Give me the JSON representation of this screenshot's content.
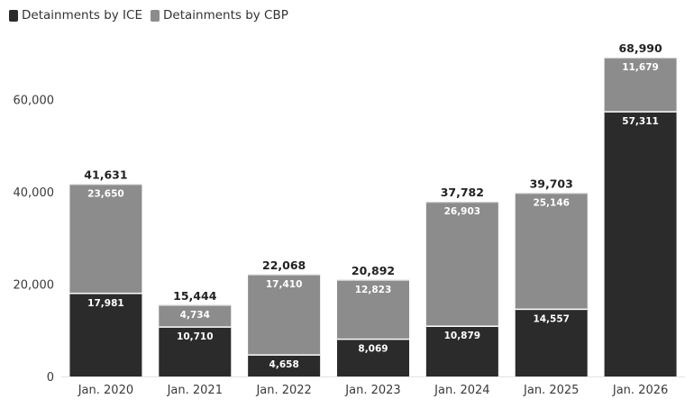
{
  "chart_data": {
    "type": "bar",
    "stacked": true,
    "categories": [
      "Jan. 2020",
      "Jan. 2021",
      "Jan. 2022",
      "Jan. 2023",
      "Jan. 2024",
      "Jan. 2025",
      "Jan. 2026"
    ],
    "series": [
      {
        "name": "Detainments by ICE",
        "color": "#2b2b2b",
        "values": [
          17981,
          10710,
          4658,
          8069,
          10879,
          14557,
          57311
        ],
        "labels": [
          "17,981",
          "10,710",
          "4,658",
          "8,069",
          "10,879",
          "14,557",
          "57,311"
        ]
      },
      {
        "name": "Detainments by CBP",
        "color": "#8c8c8c",
        "values": [
          23650,
          4734,
          17410,
          12823,
          26903,
          25146,
          11679
        ],
        "labels": [
          "23,650",
          "4,734",
          "17,410",
          "12,823",
          "26,903",
          "25,146",
          "11,679"
        ]
      }
    ],
    "totals": [
      41631,
      15444,
      22068,
      20892,
      37782,
      39703,
      68990
    ],
    "total_labels": [
      "41,631",
      "15,444",
      "22,068",
      "20,892",
      "37,782",
      "39,703",
      "68,990"
    ],
    "y_ticks": [
      0,
      20000,
      40000,
      60000
    ],
    "y_tick_labels": [
      "0",
      "20,000",
      "40,000",
      "60,000"
    ],
    "ylim": [
      0,
      70000
    ],
    "title": "",
    "xlabel": "",
    "ylabel": "",
    "legend_position": "top-left",
    "grid": false
  }
}
